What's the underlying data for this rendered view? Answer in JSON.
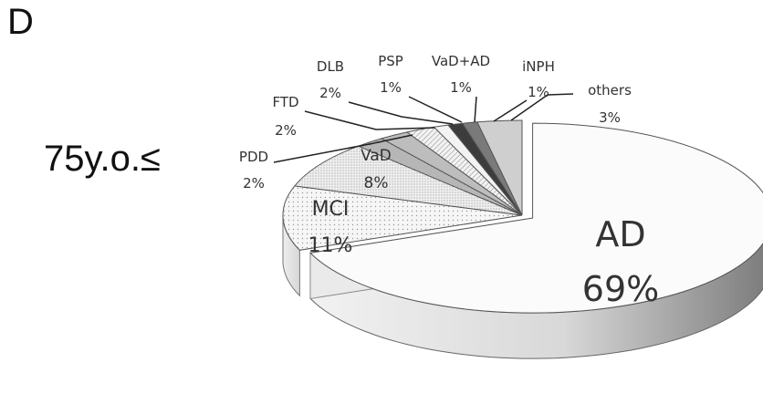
{
  "panel_letter": "D",
  "group_label": "75y.o.≤",
  "chart_data": {
    "type": "pie",
    "style": "3d-exploded-first-slice",
    "slices": [
      {
        "label": "AD",
        "value": 69,
        "value_label": "69%",
        "pattern": "plain",
        "color": "#fbfbfb"
      },
      {
        "label": "MCI",
        "value": 11,
        "value_label": "11%",
        "pattern": "dots",
        "color": "#f4f4f4"
      },
      {
        "label": "VaD",
        "value": 8,
        "value_label": "8%",
        "pattern": "fine-dots",
        "color": "#ececec"
      },
      {
        "label": "PDD",
        "value": 2,
        "value_label": "2%",
        "pattern": "dense-dots",
        "color": "#d8d8d8"
      },
      {
        "label": "FTD",
        "value": 2,
        "value_label": "2%",
        "pattern": "gray",
        "color": "#bdbdbd"
      },
      {
        "label": "DLB",
        "value": 2,
        "value_label": "2%",
        "pattern": "hatch",
        "color": "#e6e6e6"
      },
      {
        "label": "PSP",
        "value": 1,
        "value_label": "1%",
        "pattern": "light",
        "color": "#f0f0f0"
      },
      {
        "label": "VaD+AD",
        "value": 1,
        "value_label": "1%",
        "pattern": "dark",
        "color": "#3c3c3c"
      },
      {
        "label": "iNPH",
        "value": 1,
        "value_label": "1%",
        "pattern": "mid",
        "color": "#7a7a7a"
      },
      {
        "label": "others",
        "value": 3,
        "value_label": "3%",
        "pattern": "light-gray",
        "color": "#cfcfcf"
      }
    ]
  }
}
